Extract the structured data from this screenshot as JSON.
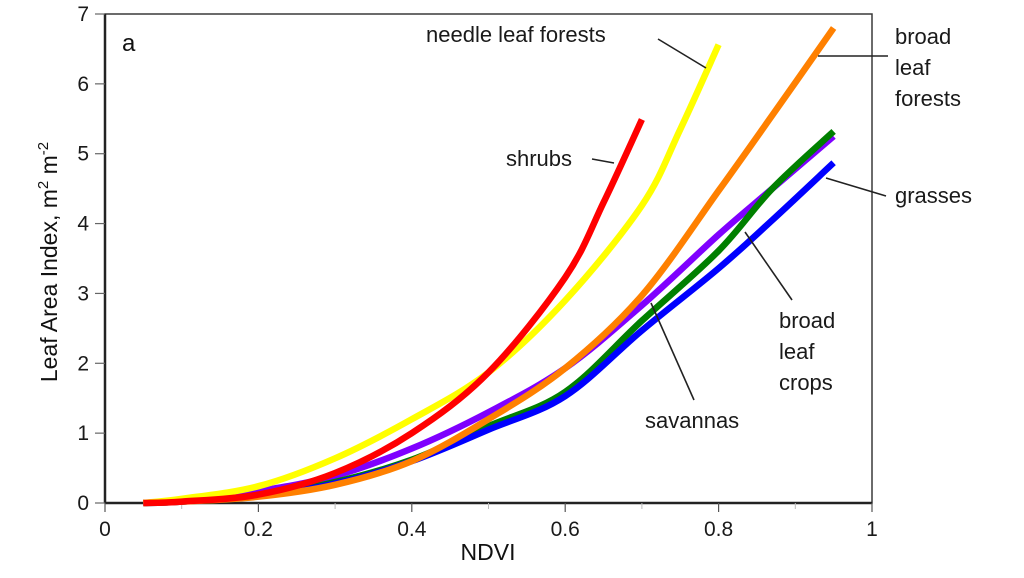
{
  "chart_data": {
    "type": "line",
    "panel_label": "a",
    "title": "",
    "xlabel": "NDVI",
    "ylabel": "Leaf Area Index, m",
    "ylabel_sup1": "2",
    "ylabel_mid": " m",
    "ylabel_sup2": "-2",
    "xlim": [
      0,
      1
    ],
    "ylim": [
      0,
      7
    ],
    "xticks": [
      0,
      0.2,
      0.4,
      0.6,
      0.8,
      1
    ],
    "xtick_labels": [
      "0",
      "0.2",
      "0.4",
      "0.6",
      "0.8",
      "1"
    ],
    "xminor_ticks": [
      0.1,
      0.3,
      0.5,
      0.7,
      0.9
    ],
    "yticks": [
      0,
      1,
      2,
      3,
      4,
      5,
      6,
      7
    ],
    "ytick_labels": [
      "0",
      "1",
      "2",
      "3",
      "4",
      "5",
      "6",
      "7"
    ],
    "grid": false,
    "series": [
      {
        "name": "savannas",
        "color": "#7f00ff",
        "x": [
          0.05,
          0.1,
          0.2,
          0.3,
          0.4,
          0.5,
          0.6,
          0.7,
          0.8,
          0.87,
          0.95
        ],
        "y": [
          0,
          0.04,
          0.17,
          0.39,
          0.78,
          1.3,
          1.93,
          2.83,
          3.84,
          4.5,
          5.25
        ]
      },
      {
        "name": "broad leaf crops",
        "color": "#008000",
        "x": [
          0.05,
          0.1,
          0.2,
          0.3,
          0.4,
          0.5,
          0.6,
          0.7,
          0.8,
          0.87,
          0.95
        ],
        "y": [
          0,
          0.02,
          0.1,
          0.3,
          0.62,
          1.1,
          1.59,
          2.61,
          3.61,
          4.5,
          5.32
        ]
      },
      {
        "name": "grasses",
        "color": "#0000ff",
        "x": [
          0.05,
          0.1,
          0.2,
          0.3,
          0.4,
          0.5,
          0.6,
          0.7,
          0.8,
          0.87,
          0.95
        ],
        "y": [
          0,
          0.02,
          0.1,
          0.28,
          0.6,
          1.05,
          1.53,
          2.47,
          3.36,
          4.05,
          4.87
        ]
      },
      {
        "name": "broad leaf forests",
        "color": "#ff8000",
        "x": [
          0.05,
          0.1,
          0.2,
          0.3,
          0.4,
          0.5,
          0.6,
          0.7,
          0.8,
          0.87,
          0.95
        ],
        "y": [
          0,
          0.02,
          0.09,
          0.26,
          0.6,
          1.2,
          1.93,
          2.97,
          4.47,
          5.55,
          6.8
        ]
      },
      {
        "name": "needle leaf forests",
        "color": "#ffff00",
        "x": [
          0.05,
          0.1,
          0.2,
          0.3,
          0.4,
          0.5,
          0.6,
          0.7,
          0.75,
          0.8
        ],
        "y": [
          0,
          0.06,
          0.24,
          0.64,
          1.2,
          1.87,
          2.9,
          4.26,
          5.35,
          6.56
        ]
      },
      {
        "name": "shrubs",
        "color": "#ff0000",
        "x": [
          0.05,
          0.1,
          0.2,
          0.3,
          0.4,
          0.5,
          0.6,
          0.65,
          0.7
        ],
        "y": [
          0,
          0.02,
          0.12,
          0.43,
          1.0,
          1.87,
          3.23,
          4.3,
          5.49
        ]
      }
    ],
    "annotations": [
      {
        "text_lines": [
          "needle leaf forests"
        ],
        "series": "needle leaf forests"
      },
      {
        "text_lines": [
          "broad",
          "leaf",
          "forests"
        ],
        "series": "broad leaf forests"
      },
      {
        "text_lines": [
          "shrubs"
        ],
        "series": "shrubs"
      },
      {
        "text_lines": [
          "grasses"
        ],
        "series": "grasses"
      },
      {
        "text_lines": [
          "broad",
          "leaf",
          "crops"
        ],
        "series": "broad leaf crops"
      },
      {
        "text_lines": [
          "savannas"
        ],
        "series": "savannas"
      }
    ]
  }
}
